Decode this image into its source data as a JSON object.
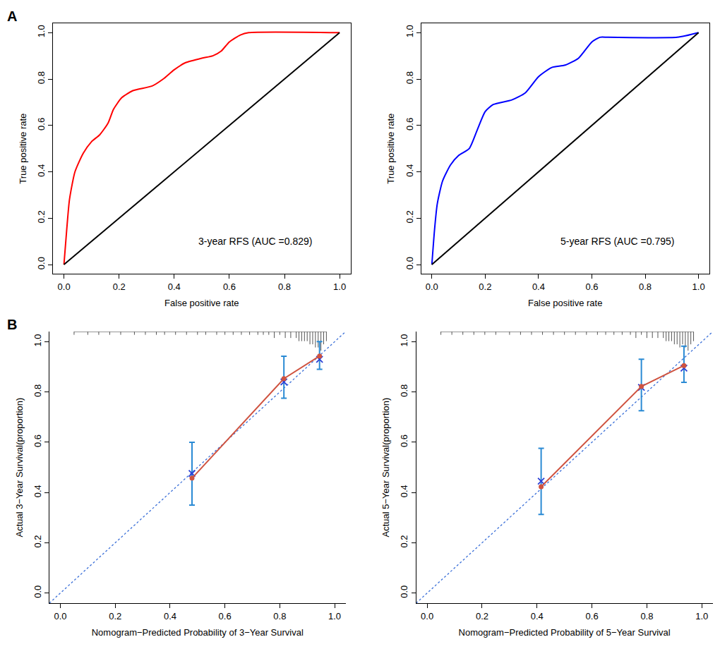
{
  "chart_data": [
    {
      "type": "line",
      "title": "A",
      "xlabel": "False positive rate",
      "ylabel": "True positive rate",
      "xlim": [
        -0.04,
        1.04
      ],
      "ylim": [
        -0.04,
        1.04
      ],
      "xticks": [
        {
          "value": 0,
          "label": "0.0"
        },
        0.2,
        0.4,
        0.6,
        0.8,
        {
          "value": 1,
          "label": "1.0"
        }
      ],
      "yticks": [
        {
          "value": 0,
          "label": "0.0"
        },
        0.2,
        0.4,
        0.6,
        0.8,
        {
          "value": 1,
          "label": "1.0"
        }
      ],
      "grid": false,
      "annotations": [
        "3-year RFS (AUC =0.829)"
      ],
      "series": [
        {
          "color": "#ff0000",
          "x": [
            0,
            0.01,
            0.02,
            0.04,
            0.07,
            0.1,
            0.13,
            0.16,
            0.18,
            0.21,
            0.25,
            0.32,
            0.36,
            0.4,
            0.44,
            0.5,
            0.54,
            0.57,
            0.6,
            0.64,
            0.67,
            1.0
          ],
          "values": [
            0,
            0.15,
            0.28,
            0.4,
            0.48,
            0.53,
            0.56,
            0.61,
            0.67,
            0.72,
            0.75,
            0.77,
            0.8,
            0.84,
            0.87,
            0.89,
            0.9,
            0.92,
            0.96,
            0.99,
            1.0,
            1.0
          ]
        },
        {
          "color": "#000000",
          "x": [
            0,
            1
          ],
          "values": [
            0,
            1
          ]
        }
      ]
    },
    {
      "type": "line",
      "xlabel": "False positive rate",
      "ylabel": "True positive rate",
      "xlim": [
        -0.04,
        1.04
      ],
      "ylim": [
        -0.04,
        1.04
      ],
      "xticks": [
        {
          "value": 0,
          "label": "0.0"
        },
        0.2,
        0.4,
        0.6,
        0.8,
        {
          "value": 1,
          "label": "1.0"
        }
      ],
      "yticks": [
        {
          "value": 0,
          "label": "0.0"
        },
        0.2,
        0.4,
        0.6,
        0.8,
        {
          "value": 1,
          "label": "1.0"
        }
      ],
      "grid": false,
      "annotations": [
        "5-year RFS (AUC =0.795)"
      ],
      "series": [
        {
          "color": "#0000ff",
          "x": [
            0,
            0.01,
            0.02,
            0.04,
            0.07,
            0.1,
            0.14,
            0.17,
            0.2,
            0.23,
            0.3,
            0.35,
            0.4,
            0.45,
            0.5,
            0.55,
            0.6,
            0.63,
            0.66,
            0.92,
            1.0
          ],
          "values": [
            0,
            0.15,
            0.26,
            0.36,
            0.43,
            0.47,
            0.5,
            0.58,
            0.66,
            0.69,
            0.71,
            0.74,
            0.81,
            0.85,
            0.86,
            0.89,
            0.96,
            0.98,
            0.98,
            0.98,
            1.0
          ]
        },
        {
          "color": "#000000",
          "x": [
            0,
            1
          ],
          "values": [
            0,
            1
          ]
        }
      ]
    },
    {
      "type": "line",
      "title": "B",
      "xlabel": "Nomogram−Predicted Probability of 3−Year Survival",
      "ylabel": "Actual 3−Year Survival(proportion)",
      "xlim": [
        -0.04,
        1.04
      ],
      "ylim": [
        -0.04,
        1.04
      ],
      "xticks": [
        {
          "value": 0,
          "label": "0.0"
        },
        0.2,
        0.4,
        0.6,
        0.8,
        {
          "value": 1,
          "label": "1.0"
        }
      ],
      "yticks": [
        {
          "value": 0,
          "label": "0.0"
        },
        0.2,
        0.4,
        0.6,
        0.8,
        {
          "value": 1,
          "label": "1.0"
        }
      ],
      "grid": false,
      "rug": {
        "x": [
          0.05,
          0.1,
          0.14,
          0.18,
          0.22,
          0.27,
          0.31,
          0.35,
          0.38,
          0.42,
          0.46,
          0.5,
          0.53,
          0.57,
          0.6,
          0.63,
          0.66,
          0.69,
          0.72,
          0.74,
          0.76,
          0.78,
          0.8,
          0.82,
          0.84,
          0.86,
          0.87,
          0.88,
          0.89,
          0.9,
          0.91,
          0.92,
          0.93,
          0.94,
          0.95,
          0.96,
          0.97
        ],
        "counts": [
          1,
          1,
          1,
          1,
          1,
          1,
          1,
          1,
          1,
          1,
          1,
          1,
          1,
          1,
          1,
          1,
          1,
          1,
          1,
          1,
          1,
          2,
          1,
          2,
          2,
          2,
          3,
          3,
          3,
          3,
          4,
          4,
          5,
          5,
          6,
          4,
          3
        ]
      },
      "series": [
        {
          "type": "line",
          "line_style": "dotted",
          "color": "#3a6fd8",
          "x": [
            -0.04,
            1.04
          ],
          "values": [
            -0.04,
            1.04
          ]
        },
        {
          "type": "scatter",
          "marker": "x",
          "color": "#2b3fd6",
          "x": [
            0.48,
            0.815,
            0.945
          ],
          "values": [
            0.476,
            0.84,
            0.93
          ],
          "error_low": [
            0.35,
            0.775,
            0.89
          ],
          "error_high": [
            0.6,
            0.942,
            1.0
          ]
        },
        {
          "type": "line",
          "marker": "circle",
          "color": "#cf5340",
          "x": [
            0.48,
            0.815,
            0.945
          ],
          "values": [
            0.457,
            0.853,
            0.943
          ]
        }
      ]
    },
    {
      "type": "line",
      "xlabel": "Nomogram−Predicted Probability of 5−Year Survival",
      "ylabel": "Actual 5−Year Survival(proportion)",
      "xlim": [
        -0.04,
        1.04
      ],
      "ylim": [
        -0.04,
        1.04
      ],
      "xticks": [
        {
          "value": 0,
          "label": "0.0"
        },
        0.2,
        0.4,
        0.6,
        0.8,
        {
          "value": 1,
          "label": "1.0"
        }
      ],
      "yticks": [
        {
          "value": 0,
          "label": "0.0"
        },
        0.2,
        0.4,
        0.6,
        0.8,
        {
          "value": 1,
          "label": "1.0"
        }
      ],
      "grid": false,
      "rug": {
        "x": [
          0.05,
          0.09,
          0.13,
          0.17,
          0.21,
          0.25,
          0.3,
          0.34,
          0.38,
          0.42,
          0.46,
          0.5,
          0.54,
          0.58,
          0.62,
          0.65,
          0.68,
          0.71,
          0.74,
          0.76,
          0.78,
          0.8,
          0.82,
          0.84,
          0.86,
          0.87,
          0.88,
          0.89,
          0.9,
          0.91,
          0.92,
          0.93,
          0.94,
          0.95,
          0.96,
          0.97
        ],
        "counts": [
          1,
          1,
          1,
          1,
          1,
          1,
          1,
          1,
          1,
          1,
          1,
          1,
          1,
          1,
          1,
          1,
          1,
          1,
          1,
          2,
          1,
          2,
          2,
          2,
          2,
          3,
          3,
          3,
          4,
          4,
          5,
          4,
          5,
          6,
          4,
          3
        ]
      },
      "series": [
        {
          "type": "line",
          "line_style": "dotted",
          "color": "#3a6fd8",
          "x": [
            -0.04,
            1.04
          ],
          "values": [
            -0.04,
            1.04
          ]
        },
        {
          "type": "scatter",
          "marker": "x",
          "color": "#2b3fd6",
          "x": [
            0.415,
            0.78,
            0.935
          ],
          "values": [
            0.445,
            0.818,
            0.895
          ],
          "error_low": [
            0.313,
            0.725,
            0.838
          ],
          "error_high": [
            0.576,
            0.93,
            0.982
          ]
        },
        {
          "type": "line",
          "marker": "circle",
          "color": "#cf5340",
          "x": [
            0.415,
            0.78,
            0.935
          ],
          "values": [
            0.423,
            0.822,
            0.905
          ]
        }
      ]
    }
  ]
}
